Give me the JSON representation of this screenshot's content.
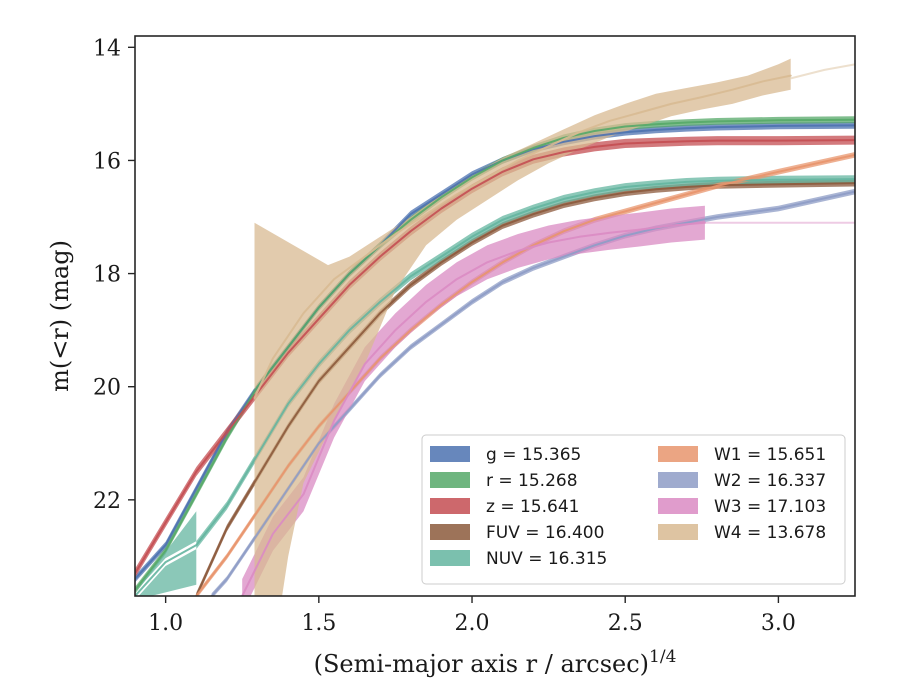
{
  "chart_data": {
    "type": "line",
    "xlabel": "(Semi-major axis r / arcsec)",
    "xlabel_exponent": "1/4",
    "ylabel": "m(<r) (mag)",
    "xlim": [
      0.9,
      3.25
    ],
    "ylim": [
      23.7,
      13.8
    ],
    "y_inverted": true,
    "xticks": [
      "1.0",
      "1.5",
      "2.0",
      "2.5",
      "3.0"
    ],
    "xtick_values": [
      1.0,
      1.5,
      2.0,
      2.5,
      3.0
    ],
    "yticks": [
      "14",
      "16",
      "18",
      "20",
      "22"
    ],
    "ytick_values": [
      14,
      16,
      18,
      20,
      22
    ],
    "legend_position": "lower-right",
    "series": [
      {
        "name": "g = 15.365",
        "color": "#4C72B0",
        "band_halfwidth": 0.06,
        "points": [
          [
            0.9,
            23.4
          ],
          [
            1.0,
            22.8
          ],
          [
            1.1,
            21.8
          ],
          [
            1.2,
            20.8
          ],
          [
            1.3,
            20.0
          ],
          [
            1.4,
            19.3
          ],
          [
            1.5,
            18.6
          ],
          [
            1.6,
            18.0
          ],
          [
            1.7,
            17.5
          ],
          [
            1.8,
            16.95
          ],
          [
            1.9,
            16.6
          ],
          [
            2.0,
            16.25
          ],
          [
            2.1,
            16.0
          ],
          [
            2.2,
            15.8
          ],
          [
            2.3,
            15.67
          ],
          [
            2.4,
            15.57
          ],
          [
            2.5,
            15.5
          ],
          [
            2.6,
            15.46
          ],
          [
            2.7,
            15.43
          ],
          [
            2.8,
            15.41
          ],
          [
            3.0,
            15.39
          ],
          [
            3.25,
            15.38
          ]
        ]
      },
      {
        "name": "r = 15.268",
        "color": "#55A868",
        "band_halfwidth": 0.06,
        "points": [
          [
            0.9,
            23.6
          ],
          [
            1.0,
            22.9
          ],
          [
            1.1,
            21.9
          ],
          [
            1.2,
            20.9
          ],
          [
            1.3,
            20.0
          ],
          [
            1.4,
            19.3
          ],
          [
            1.5,
            18.6
          ],
          [
            1.6,
            18.0
          ],
          [
            1.7,
            17.5
          ],
          [
            1.8,
            17.05
          ],
          [
            1.9,
            16.65
          ],
          [
            2.0,
            16.3
          ],
          [
            2.1,
            16.0
          ],
          [
            2.2,
            15.78
          ],
          [
            2.3,
            15.6
          ],
          [
            2.4,
            15.48
          ],
          [
            2.5,
            15.4
          ],
          [
            2.6,
            15.36
          ],
          [
            2.7,
            15.33
          ],
          [
            2.8,
            15.31
          ],
          [
            3.0,
            15.29
          ],
          [
            3.25,
            15.28
          ]
        ]
      },
      {
        "name": "z = 15.641",
        "color": "#C44E52",
        "band_halfwidth": 0.08,
        "points": [
          [
            0.9,
            23.3
          ],
          [
            1.0,
            22.4
          ],
          [
            1.1,
            21.5
          ],
          [
            1.2,
            20.8
          ],
          [
            1.3,
            20.1
          ],
          [
            1.4,
            19.4
          ],
          [
            1.5,
            18.8
          ],
          [
            1.6,
            18.2
          ],
          [
            1.7,
            17.7
          ],
          [
            1.8,
            17.25
          ],
          [
            1.9,
            16.85
          ],
          [
            2.0,
            16.5
          ],
          [
            2.1,
            16.2
          ],
          [
            2.2,
            15.98
          ],
          [
            2.3,
            15.85
          ],
          [
            2.4,
            15.76
          ],
          [
            2.5,
            15.7
          ],
          [
            2.6,
            15.68
          ],
          [
            2.7,
            15.66
          ],
          [
            2.8,
            15.65
          ],
          [
            3.0,
            15.65
          ],
          [
            3.25,
            15.64
          ]
        ]
      },
      {
        "name": "FUV = 16.400",
        "color": "#8C5A3C",
        "band_halfwidth": 0.06,
        "band_start": {
          "x": 1.1,
          "lo": 22.6,
          "hi": 24.5
        },
        "points": [
          [
            1.1,
            23.7
          ],
          [
            1.2,
            22.5
          ],
          [
            1.3,
            21.6
          ],
          [
            1.4,
            20.7
          ],
          [
            1.5,
            19.9
          ],
          [
            1.6,
            19.3
          ],
          [
            1.7,
            18.7
          ],
          [
            1.8,
            18.2
          ],
          [
            1.9,
            17.8
          ],
          [
            2.0,
            17.45
          ],
          [
            2.1,
            17.15
          ],
          [
            2.2,
            16.95
          ],
          [
            2.3,
            16.78
          ],
          [
            2.4,
            16.66
          ],
          [
            2.5,
            16.57
          ],
          [
            2.6,
            16.51
          ],
          [
            2.7,
            16.47
          ],
          [
            2.8,
            16.44
          ],
          [
            3.0,
            16.42
          ],
          [
            3.25,
            16.4
          ]
        ]
      },
      {
        "name": "NUV = 16.315",
        "color": "#64B5A0",
        "band_halfwidth": 0.07,
        "band_start": {
          "x": 1.1,
          "lo": 22.2,
          "hi": 23.5
        },
        "points": [
          [
            0.9,
            23.7
          ],
          [
            1.0,
            23.1
          ],
          [
            1.1,
            22.8
          ],
          [
            1.2,
            22.1
          ],
          [
            1.3,
            21.2
          ],
          [
            1.4,
            20.3
          ],
          [
            1.5,
            19.6
          ],
          [
            1.6,
            19.0
          ],
          [
            1.7,
            18.5
          ],
          [
            1.8,
            18.05
          ],
          [
            1.9,
            17.7
          ],
          [
            2.0,
            17.35
          ],
          [
            2.1,
            17.05
          ],
          [
            2.2,
            16.85
          ],
          [
            2.3,
            16.68
          ],
          [
            2.4,
            16.56
          ],
          [
            2.5,
            16.47
          ],
          [
            2.6,
            16.42
          ],
          [
            2.7,
            16.38
          ],
          [
            2.8,
            16.36
          ],
          [
            3.0,
            16.34
          ],
          [
            3.25,
            16.33
          ]
        ]
      },
      {
        "name": "W1 = 15.651",
        "color": "#E8956D",
        "band_halfwidth": 0.05,
        "points": [
          [
            1.1,
            23.7
          ],
          [
            1.2,
            23.0
          ],
          [
            1.3,
            22.2
          ],
          [
            1.4,
            21.4
          ],
          [
            1.5,
            20.7
          ],
          [
            1.6,
            20.1
          ],
          [
            1.7,
            19.5
          ],
          [
            1.8,
            19.0
          ],
          [
            1.9,
            18.55
          ],
          [
            2.0,
            18.15
          ],
          [
            2.1,
            17.8
          ],
          [
            2.2,
            17.5
          ],
          [
            2.3,
            17.25
          ],
          [
            2.4,
            17.05
          ],
          [
            2.5,
            16.9
          ],
          [
            2.6,
            16.75
          ],
          [
            2.7,
            16.6
          ],
          [
            2.8,
            16.45
          ],
          [
            3.0,
            16.2
          ],
          [
            3.25,
            15.9
          ]
        ]
      },
      {
        "name": "W2 = 16.337",
        "color": "#8E9CC6",
        "band_halfwidth": 0.05,
        "points": [
          [
            1.15,
            23.7
          ],
          [
            1.2,
            23.4
          ],
          [
            1.3,
            22.6
          ],
          [
            1.4,
            21.8
          ],
          [
            1.5,
            21.0
          ],
          [
            1.6,
            20.4
          ],
          [
            1.7,
            19.8
          ],
          [
            1.8,
            19.3
          ],
          [
            1.9,
            18.9
          ],
          [
            2.0,
            18.5
          ],
          [
            2.1,
            18.15
          ],
          [
            2.2,
            17.9
          ],
          [
            2.3,
            17.7
          ],
          [
            2.4,
            17.5
          ],
          [
            2.5,
            17.33
          ],
          [
            2.6,
            17.2
          ],
          [
            2.7,
            17.1
          ],
          [
            2.8,
            17.0
          ],
          [
            3.0,
            16.85
          ],
          [
            3.25,
            16.55
          ]
        ]
      },
      {
        "name": "W3 = 17.103",
        "color": "#DA8BC3",
        "band_halfwidth": 0.3,
        "points": [
          [
            1.25,
            23.7
          ],
          [
            1.35,
            22.6
          ],
          [
            1.45,
            21.9
          ],
          [
            1.55,
            20.6
          ],
          [
            1.65,
            19.6
          ],
          [
            1.75,
            19.0
          ],
          [
            1.85,
            18.5
          ],
          [
            1.95,
            18.1
          ],
          [
            2.05,
            17.8
          ],
          [
            2.15,
            17.6
          ],
          [
            2.25,
            17.45
          ],
          [
            2.35,
            17.35
          ],
          [
            2.45,
            17.28
          ],
          [
            2.55,
            17.22
          ],
          [
            2.65,
            17.15
          ],
          [
            2.76,
            17.1
          ]
        ],
        "tail_points": [
          [
            2.76,
            17.1
          ],
          [
            3.0,
            17.1
          ],
          [
            3.25,
            17.1
          ]
        ]
      },
      {
        "name": "W4 = 13.678",
        "color": "#D8BA92",
        "band_halfwidth": 0.25,
        "points": [
          [
            1.29,
            20.2
          ],
          [
            1.35,
            19.5
          ],
          [
            1.45,
            18.7
          ],
          [
            1.55,
            18.1
          ],
          [
            1.65,
            17.7
          ],
          [
            1.75,
            17.3
          ],
          [
            1.85,
            16.95
          ],
          [
            1.95,
            16.6
          ],
          [
            2.05,
            16.3
          ],
          [
            2.15,
            16.0
          ],
          [
            2.25,
            15.75
          ],
          [
            2.35,
            15.5
          ],
          [
            2.45,
            15.3
          ],
          [
            2.55,
            15.15
          ],
          [
            2.65,
            15.0
          ],
          [
            2.75,
            14.88
          ],
          [
            2.85,
            14.75
          ],
          [
            2.95,
            14.6
          ],
          [
            3.04,
            14.5
          ]
        ],
        "tail_points": [
          [
            3.04,
            14.55
          ],
          [
            3.15,
            14.4
          ],
          [
            3.25,
            14.3
          ]
        ],
        "band_polygon": [
          [
            1.29,
            17.1
          ],
          [
            1.53,
            17.85
          ],
          [
            1.6,
            17.7
          ],
          [
            1.7,
            17.35
          ],
          [
            1.8,
            17.0
          ],
          [
            1.9,
            16.6
          ],
          [
            2.0,
            16.25
          ],
          [
            2.1,
            15.95
          ],
          [
            2.2,
            15.7
          ],
          [
            2.3,
            15.45
          ],
          [
            2.4,
            15.2
          ],
          [
            2.5,
            15.0
          ],
          [
            2.6,
            14.82
          ],
          [
            2.7,
            14.72
          ],
          [
            2.8,
            14.62
          ],
          [
            2.9,
            14.5
          ],
          [
            3.0,
            14.3
          ],
          [
            3.04,
            14.2
          ],
          [
            3.04,
            14.75
          ],
          [
            2.95,
            14.85
          ],
          [
            2.85,
            15.0
          ],
          [
            2.75,
            15.1
          ],
          [
            2.65,
            15.22
          ],
          [
            2.55,
            15.4
          ],
          [
            2.45,
            15.58
          ],
          [
            2.35,
            15.8
          ],
          [
            2.25,
            16.05
          ],
          [
            2.15,
            16.35
          ],
          [
            2.05,
            16.7
          ],
          [
            1.95,
            17.05
          ],
          [
            1.85,
            17.5
          ],
          [
            1.75,
            18.3
          ],
          [
            1.65,
            19.6
          ],
          [
            1.55,
            20.6
          ],
          [
            1.45,
            21.7
          ],
          [
            1.4,
            23.0
          ],
          [
            1.38,
            23.7
          ],
          [
            1.29,
            23.7
          ]
        ]
      }
    ]
  }
}
